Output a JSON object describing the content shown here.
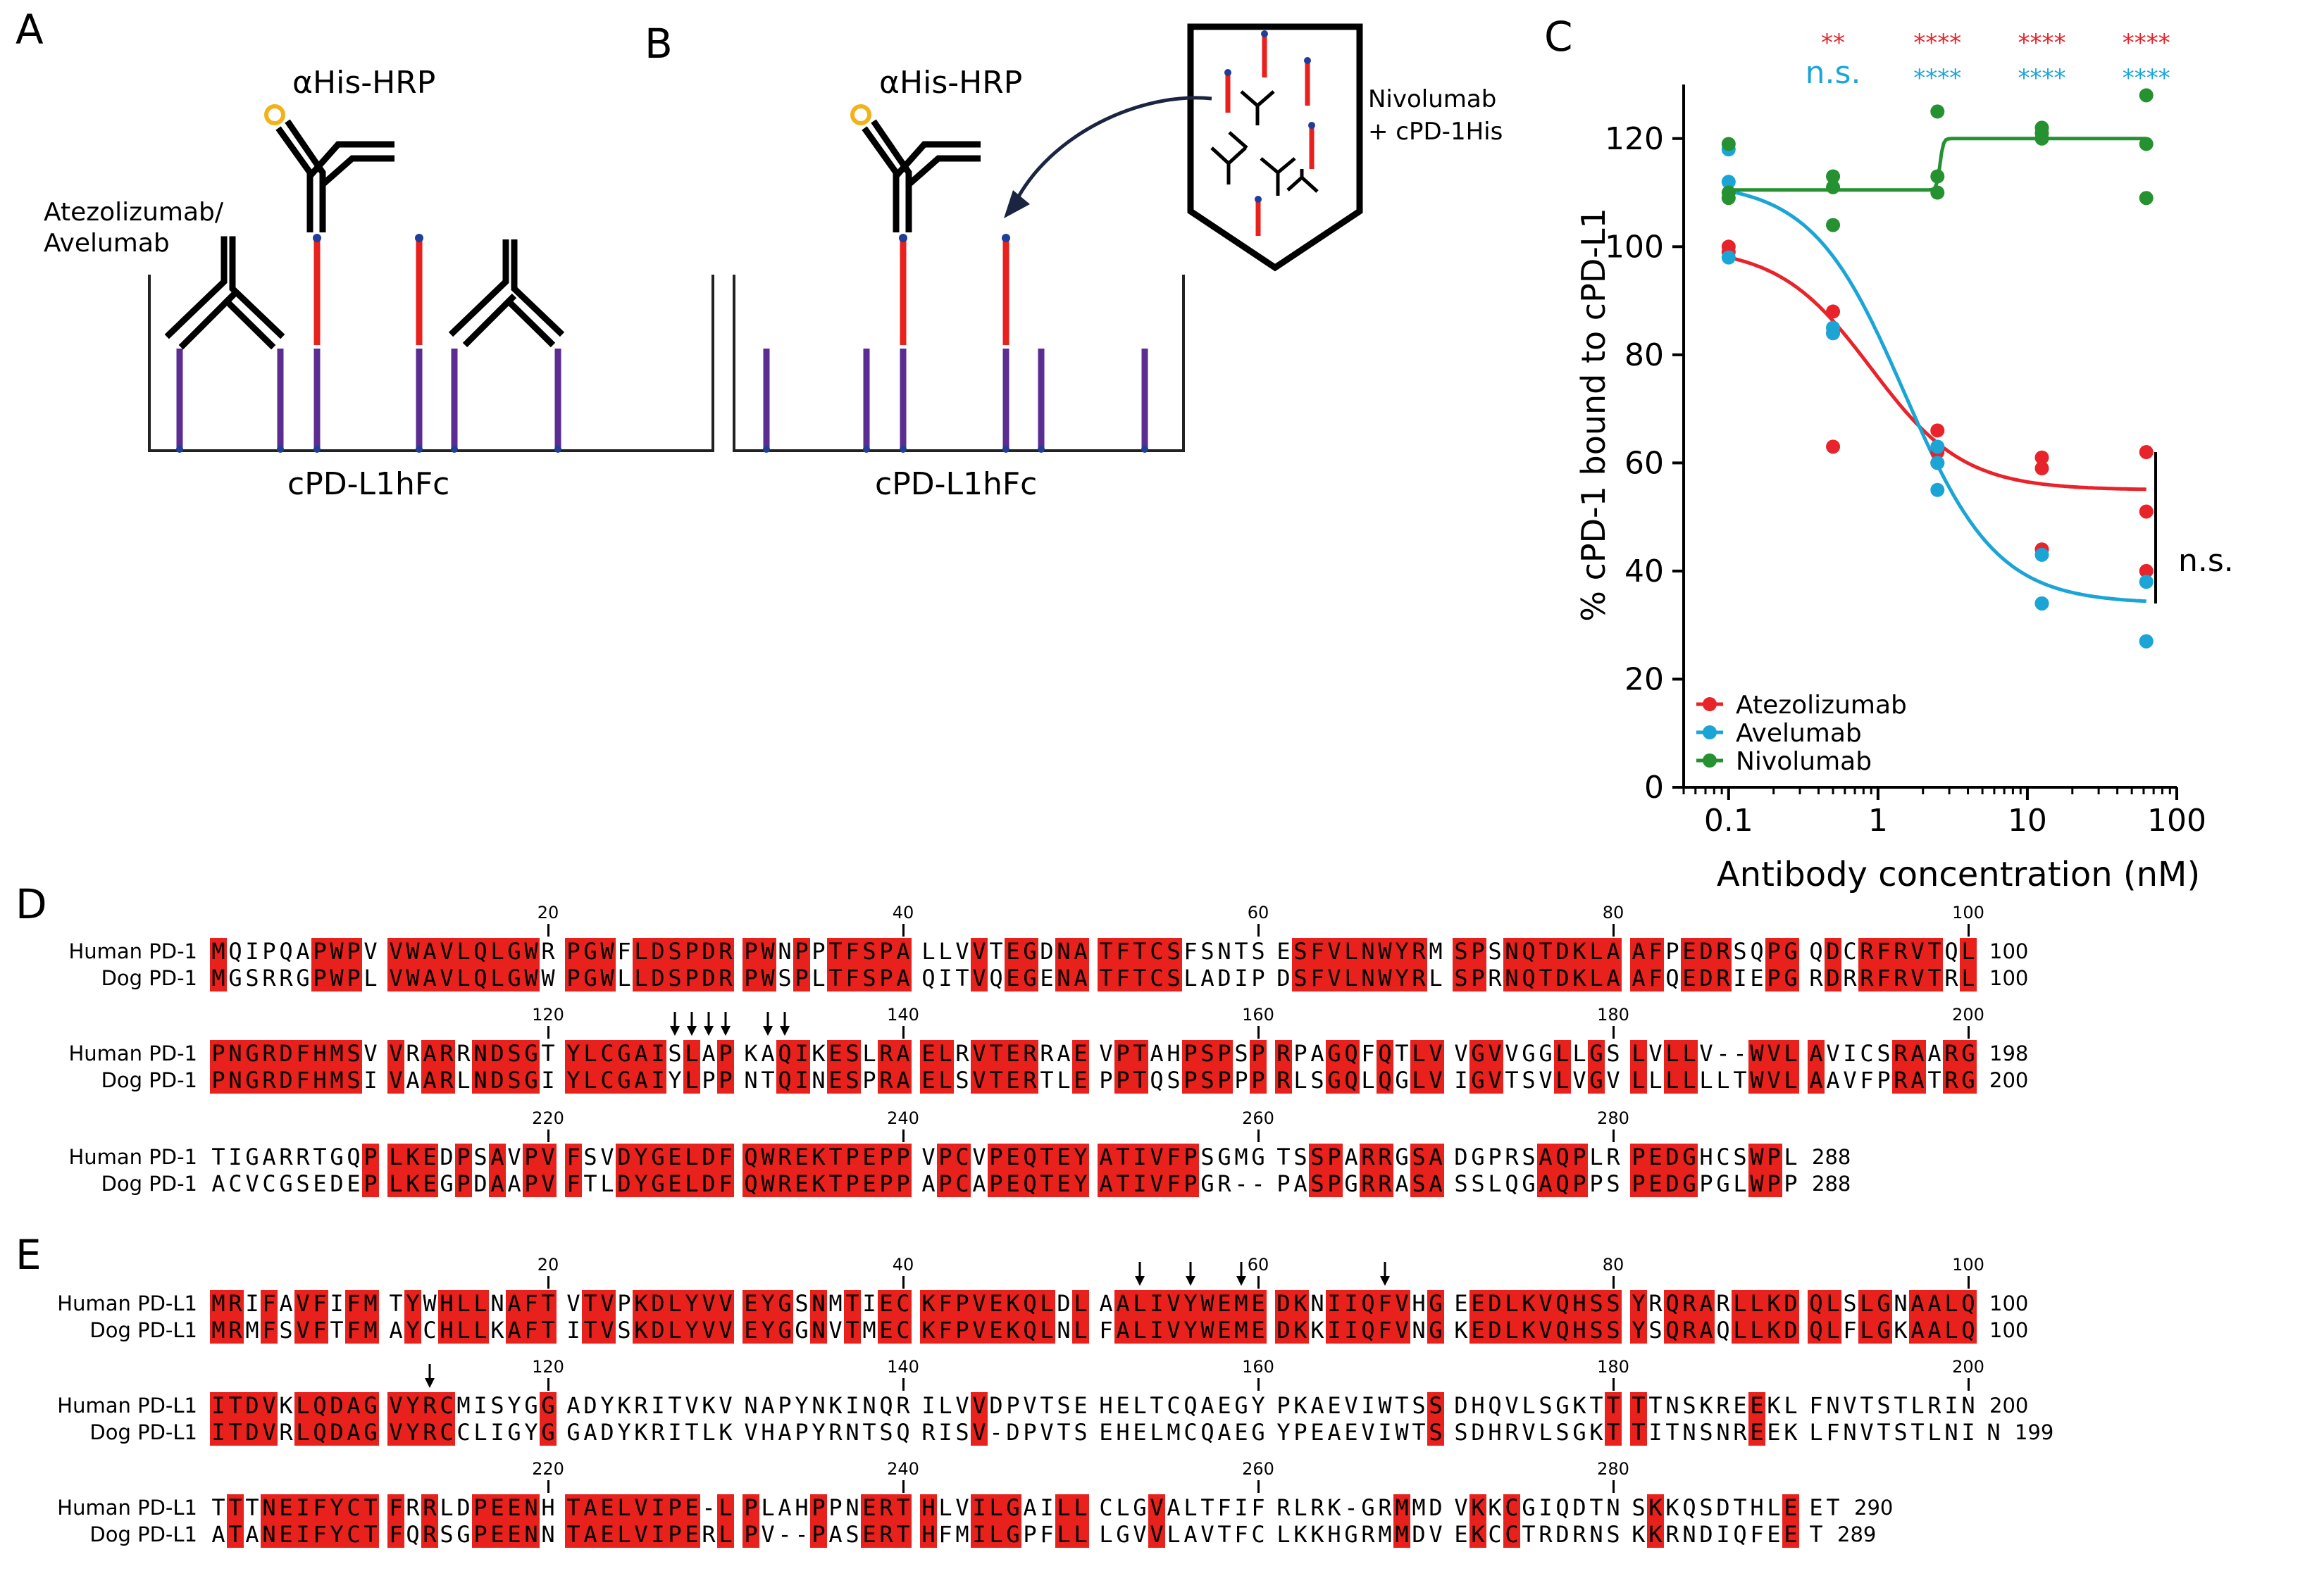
{
  "panels": {
    "A": {
      "letter": "A",
      "antibody_label": "Atezolizumab/\nAvelumab",
      "antibody_label_line1": "Atezolizumab/",
      "antibody_label_line2": "Avelumab",
      "detector_label": "αHis-HRP",
      "plate_label": "cPD-L1hFc"
    },
    "B": {
      "letter": "B",
      "detector_label": "αHis-HRP",
      "tube_label_line1": "Nivolumab",
      "tube_label_line2": "+ cPD-1His",
      "plate_label": "cPD-L1hFc"
    },
    "C": {
      "letter": "C",
      "significance_red": [
        "**",
        "****",
        "****",
        "****"
      ],
      "significance_blue": [
        "n.s.",
        "****",
        "****",
        "****"
      ],
      "bracket_label": "n.s."
    },
    "D": {
      "letter": "D"
    },
    "E": {
      "letter": "E"
    }
  },
  "chart_data": {
    "type": "scatter",
    "title": "",
    "xlabel": "Antibody concentration (nM)",
    "ylabel": "% cPD-1 bound to cPD-L1",
    "xscale": "log",
    "xlim": [
      0.05,
      100
    ],
    "ylim": [
      0,
      130
    ],
    "x_ticks": [
      0.1,
      1,
      10,
      100
    ],
    "x_tick_labels": [
      "0.1",
      "1",
      "10",
      "100"
    ],
    "y_ticks": [
      0,
      20,
      40,
      60,
      80,
      100,
      120
    ],
    "y_tick_labels": [
      "0",
      "20",
      "40",
      "60",
      "80",
      "100",
      "120"
    ],
    "legend_position": "bottom-left",
    "series": [
      {
        "name": "Atezolizumab",
        "color": "#e8232a",
        "points": [
          [
            0.1,
            100
          ],
          [
            0.1,
            99
          ],
          [
            0.5,
            88
          ],
          [
            0.5,
            84
          ],
          [
            0.5,
            63
          ],
          [
            2.5,
            66
          ],
          [
            2.5,
            62
          ],
          [
            2.5,
            60
          ],
          [
            12.5,
            61
          ],
          [
            12.5,
            59
          ],
          [
            12.5,
            44
          ],
          [
            62.5,
            62
          ],
          [
            62.5,
            51
          ],
          [
            62.5,
            40
          ]
        ],
        "fit": {
          "top": 100,
          "bottom": 55,
          "ec50": 0.9,
          "hill": 1.4
        }
      },
      {
        "name": "Avelumab",
        "color": "#1ba5d6",
        "points": [
          [
            0.1,
            118
          ],
          [
            0.1,
            112
          ],
          [
            0.1,
            98
          ],
          [
            0.5,
            85
          ],
          [
            0.5,
            84
          ],
          [
            2.5,
            63
          ],
          [
            2.5,
            60
          ],
          [
            2.5,
            55
          ],
          [
            12.5,
            43
          ],
          [
            12.5,
            34
          ],
          [
            12.5,
            34
          ],
          [
            62.5,
            38
          ],
          [
            62.5,
            27
          ],
          [
            62.5,
            27
          ]
        ],
        "fit": {
          "top": 112,
          "bottom": 34,
          "ec50": 1.5,
          "hill": 1.4
        }
      },
      {
        "name": "Nivolumab",
        "color": "#259130",
        "points": [
          [
            0.1,
            119
          ],
          [
            0.1,
            110
          ],
          [
            0.1,
            109
          ],
          [
            0.5,
            113
          ],
          [
            0.5,
            111
          ],
          [
            0.5,
            104
          ],
          [
            2.5,
            125
          ],
          [
            2.5,
            113
          ],
          [
            2.5,
            110
          ],
          [
            12.5,
            122
          ],
          [
            12.5,
            121
          ],
          [
            12.5,
            120
          ],
          [
            62.5,
            128
          ],
          [
            62.5,
            119
          ],
          [
            62.5,
            109
          ]
        ],
        "fit": {
          "type": "step",
          "low": 110.5,
          "high": 120,
          "step_at": 2.6
        }
      }
    ]
  },
  "alignments": {
    "D": {
      "blocks": [
        {
          "ticks": [
            "20",
            "40",
            "60",
            "80",
            "100"
          ],
          "rows": [
            {
              "label": "Human PD-1",
              "seq": "MQIPQAPWPVVWAVLQLGWRPGWFLDSPDRPWNPPTFSPALLVVTEGDNATFTCSFSNTSESFVLNWYRMSPSNQTDKLAAFPEDRSQPGQDCRFRVTQL",
              "num": "100"
            },
            {
              "label": "Dog PD-1",
              "seq": "MGSRRGPWPLVWAVLQLGWWPGWLLDSPDRPWSPLTFSPAQITVQEGENATFTCSLADIPDSFVLNWYRLSPRNQTDKLAAFQEDRIEPGRDRRFRVTRL",
              "num": "100"
            }
          ]
        },
        {
          "ticks": [
            "120",
            "140",
            "160",
            "180",
            "200"
          ],
          "rows": [
            {
              "label": "Human PD-1",
              "seq": "PNGRDFHMSVVRARRNDSGTYLCGAISLAPKAQIKESLRAELRVTERRAEVPTAHPSPSPRPAGQFQTLVVGVVGGLLGSLVLLV--WVLAVICSRAARG",
              "num": "198"
            },
            {
              "label": "Dog PD-1",
              "seq": "PNGRDFHMSIVAARLNDSGIYLCGAIYLPPNTQINESPRAELSVTERTLEPPTQSPSPPPRLSGQLQGLVIGVTSVLVGVLLLLLLTWVLAAVFPRATRG",
              "num": "200"
            }
          ]
        },
        {
          "ticks": [
            "220",
            "240",
            "260",
            "280"
          ],
          "rows": [
            {
              "label": "Human PD-1",
              "seq": "TIGARRTGQPLKEDPSAVPVFSVDYGELDFQWREKTPEPPVPCVPEQTEYATIVFPSGMGTSSPARRGSADGPRSAQPLRPEDGHCSWPL",
              "num": "288"
            },
            {
              "label": "Dog PD-1",
              "seq": "ACVCGSEDEPLKEGPDAAPVFTLDYGELDFQWREKTPEPPAPCAPEQTEYATIVFPGR--PASPGRRASASSLQGAQPPSPEDGPGLWPP",
              "num": "288"
            }
          ]
        }
      ]
    },
    "E": {
      "blocks": [
        {
          "ticks": [
            "20",
            "40",
            "60",
            "80",
            "100"
          ],
          "rows": [
            {
              "label": "Human PD-L1",
              "seq": "MRIFAVFIFMTYWHLLNAFTVTVPKDLYVVEYGSNMTIECKFPVEKQLDLAALIVYWEMEDKNIIQFVHGEEDLKVQHSSYRQRARLLKDQLSLGNAALQ",
              "num": "100"
            },
            {
              "label": "Dog PD-L1",
              "seq": "MRMFSVFTFMAYCHLLKAFTITVSKDLYVVEYGGNVTMECKFPVEKQLNLFALIVYWEMEDKKIIQFVNGKEDLKVQHSSYSQRAQLLKDQLFLGKAALQ",
              "num": "100"
            }
          ]
        },
        {
          "ticks": [
            "120",
            "140",
            "160",
            "180",
            "200"
          ],
          "rows": [
            {
              "label": "Human PD-L1",
              "seq": "ITDVKLQDAGVYRCMISYGGADYKRITVKVNAPYNKINQRILVVDPVTSEHELTCQAEGYPKAEVIWTSSDHQVLSGKTTTTNSKREEKLFNVTSTLRIN",
              "num": "200"
            },
            {
              "label": "Dog PD-L1",
              "seq": "ITDVRLQDAGVYRCCLIGYGGADYKRITLKVHAPYRNTSQRISV-DPVTSEHELMCQAEGYPEAEVIWTSSDHRVLSGKTTITNSNREEKLFNVTSTLNIN",
              "num": "199"
            }
          ]
        },
        {
          "ticks": [
            "220",
            "240",
            "260",
            "280"
          ],
          "rows": [
            {
              "label": "Human PD-L1",
              "seq": "TTTNEIFYCTFRRLDPEENHTAELVIPE-LPLAHPPNERTHLVILGAILLCLGVALTFIFRLRK-GRMMDVKKCGIQDTNSKKQSDTHLEET",
              "num": "290"
            },
            {
              "label": "Dog PD-L1",
              "seq": "ATANEIFYCTFQRSGPEENNTAELVIPERLPV--PASERTHFMILGPFLLLGVVLAVTFCLKKHGRMMDVEKCCTRDRNSKKRNDIQFEET",
              "num": "289"
            }
          ]
        }
      ]
    }
  }
}
